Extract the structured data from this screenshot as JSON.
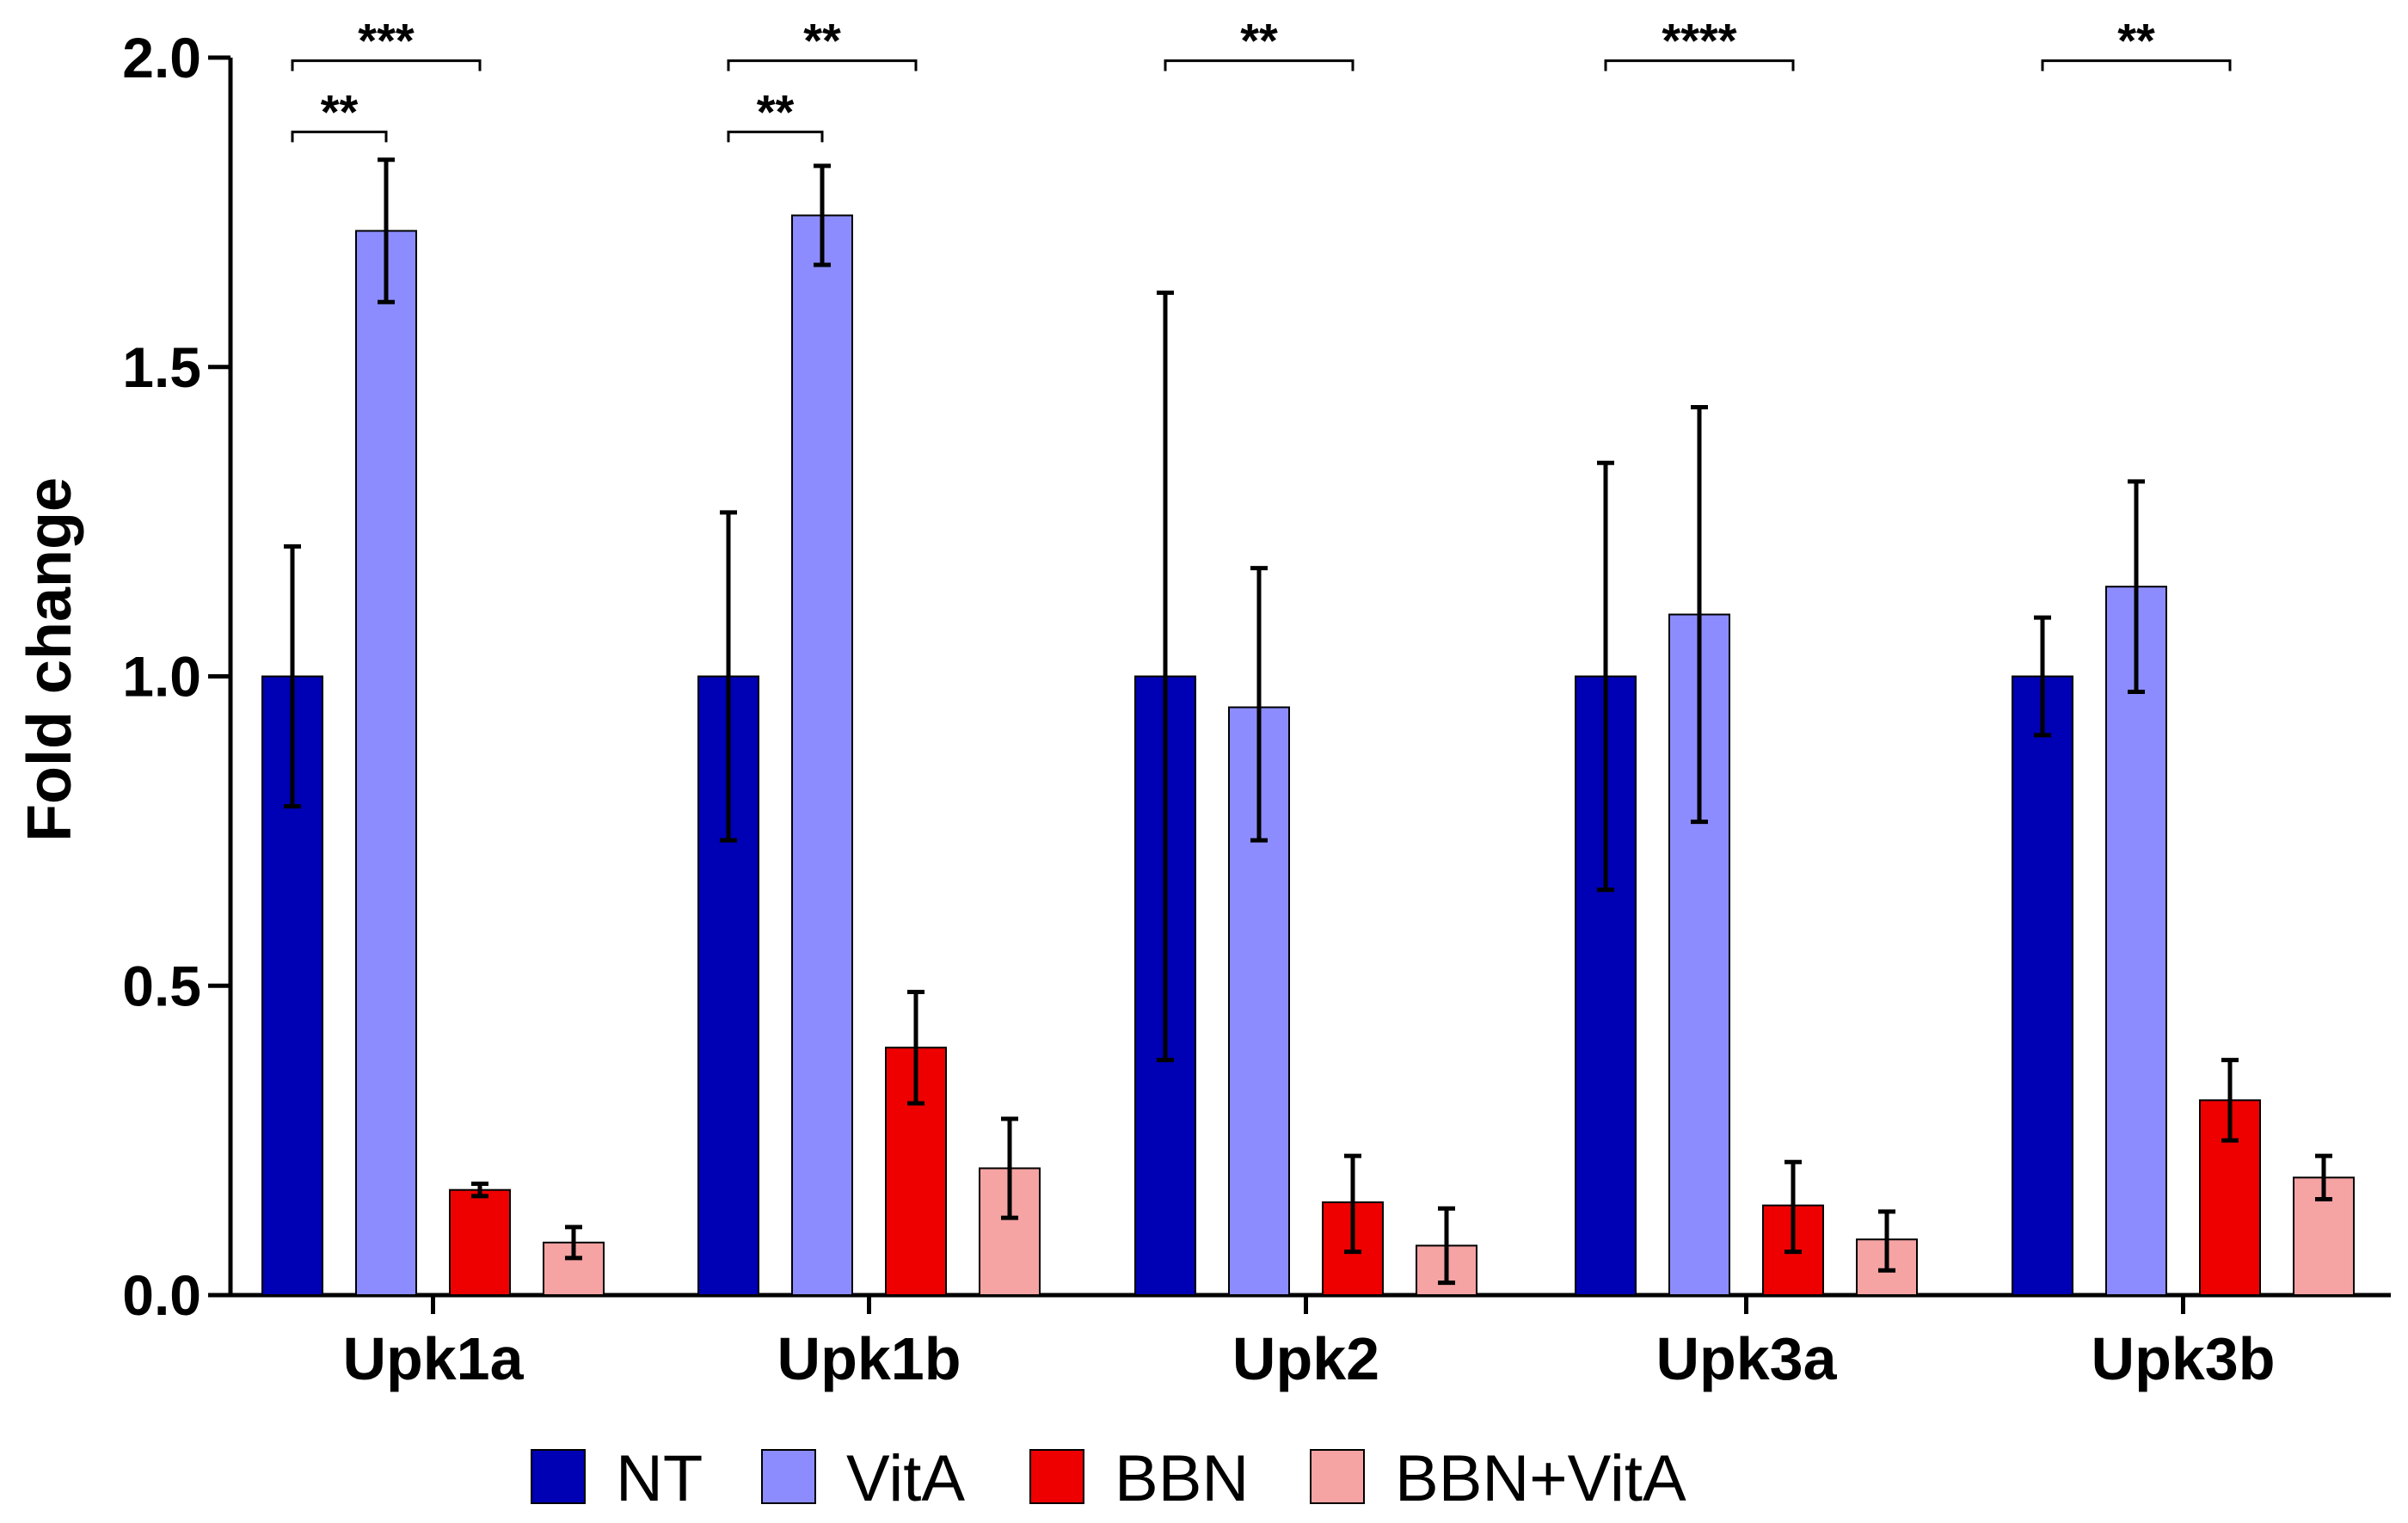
{
  "chart_data": {
    "type": "bar",
    "title": "",
    "xlabel": "",
    "ylabel": "Fold change",
    "ylim": [
      0,
      2.0
    ],
    "yticks": [
      "0.0",
      "0.5",
      "1.0",
      "1.5",
      "2.0"
    ],
    "categories": [
      "Upk1a",
      "Upk1b",
      "Upk2",
      "Upk3a",
      "Upk3b"
    ],
    "series": [
      {
        "name": "NT",
        "color": "#0000b4",
        "values": [
          1.0,
          1.0,
          1.0,
          1.0,
          1.0
        ],
        "err_low": [
          0.79,
          0.735,
          0.38,
          0.655,
          0.905
        ],
        "err_high": [
          1.21,
          1.265,
          1.62,
          1.345,
          1.095
        ]
      },
      {
        "name": "VitA",
        "color": "#8c8cff",
        "values": [
          1.72,
          1.745,
          0.95,
          1.1,
          1.145
        ],
        "err_low": [
          1.605,
          1.665,
          0.735,
          0.765,
          0.975
        ],
        "err_high": [
          1.835,
          1.825,
          1.175,
          1.435,
          1.315
        ]
      },
      {
        "name": "BBN",
        "color": "#ee0000",
        "values": [
          0.17,
          0.4,
          0.15,
          0.145,
          0.315
        ],
        "err_low": [
          0.16,
          0.31,
          0.07,
          0.07,
          0.25
        ],
        "err_high": [
          0.18,
          0.49,
          0.225,
          0.215,
          0.38
        ]
      },
      {
        "name": "BBN+VitA",
        "color": "#f5a3a3",
        "values": [
          0.085,
          0.205,
          0.08,
          0.09,
          0.19
        ],
        "err_low": [
          0.06,
          0.125,
          0.02,
          0.04,
          0.155
        ],
        "err_high": [
          0.11,
          0.285,
          0.14,
          0.135,
          0.225
        ]
      }
    ],
    "significance": [
      {
        "category": 0,
        "from": 0,
        "to": 1,
        "y": 1.88,
        "label": "**"
      },
      {
        "category": 0,
        "from": 0,
        "to": 2,
        "y": 1.995,
        "label": "***"
      },
      {
        "category": 1,
        "from": 0,
        "to": 1,
        "y": 1.88,
        "label": "**"
      },
      {
        "category": 1,
        "from": 0,
        "to": 2,
        "y": 1.995,
        "label": "**"
      },
      {
        "category": 2,
        "from": 0,
        "to": 2,
        "y": 1.995,
        "label": "**"
      },
      {
        "category": 3,
        "from": 0,
        "to": 2,
        "y": 1.995,
        "label": "****"
      },
      {
        "category": 4,
        "from": 0,
        "to": 2,
        "y": 1.995,
        "label": "**"
      }
    ],
    "legend_position": "bottom-center"
  }
}
